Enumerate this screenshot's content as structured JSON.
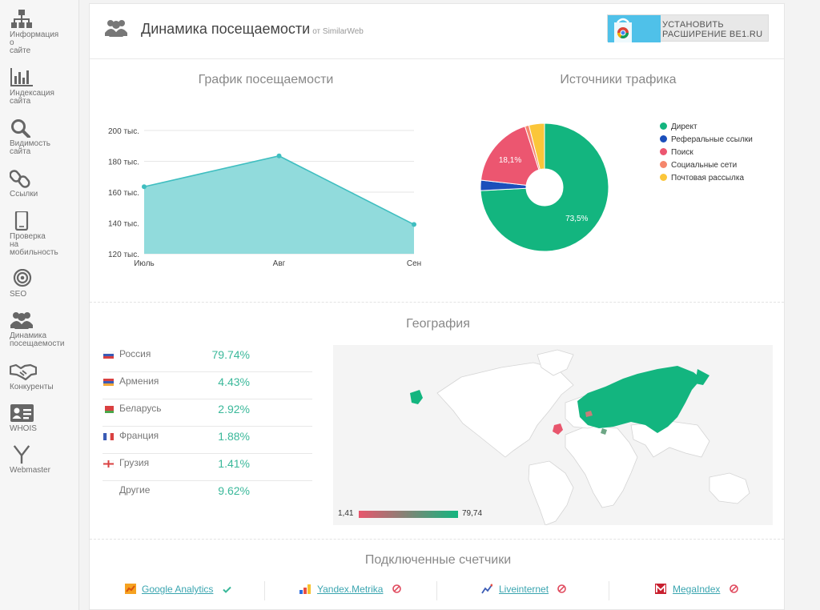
{
  "sidebar": {
    "items": [
      {
        "icon": "sitemap-icon",
        "label": "Информация\nо\nсайте"
      },
      {
        "icon": "bar-chart-icon",
        "label": "Индексация\nсайта"
      },
      {
        "icon": "search-icon",
        "label": "Видимость\nсайта"
      },
      {
        "icon": "link-icon",
        "label": "Ссылки"
      },
      {
        "icon": "mobile-icon",
        "label": "Проверка\nна\nмобильность"
      },
      {
        "icon": "target-icon",
        "label": "SEO"
      },
      {
        "icon": "users-icon",
        "label": "Динамика\nпосещаемости"
      },
      {
        "icon": "handshake-icon",
        "label": "Конкуренты"
      },
      {
        "icon": "id-card-icon",
        "label": "WHOIS"
      },
      {
        "icon": "yandex-icon",
        "label": "Webmaster"
      }
    ]
  },
  "header": {
    "icon": "users-icon",
    "title": "Динамика посещаемости",
    "subtitle": "от SimilarWeb",
    "extension_button": "УСТАНОВИТЬ\nРАСШИРЕНИЕ BE1.RU"
  },
  "traffic": {
    "title": "График посещаемости"
  },
  "sources": {
    "title": "Источники трафика"
  },
  "geography": {
    "title": "География",
    "rows": [
      {
        "flag": "ru",
        "name": "Россия",
        "pct": "79.74%"
      },
      {
        "flag": "am",
        "name": "Армения",
        "pct": "4.43%"
      },
      {
        "flag": "by",
        "name": "Беларусь",
        "pct": "2.92%"
      },
      {
        "flag": "fr",
        "name": "Франция",
        "pct": "1.88%"
      },
      {
        "flag": "ge",
        "name": "Грузия",
        "pct": "1.41%"
      },
      {
        "flag": "",
        "name": "Другие",
        "pct": "9.62%"
      }
    ],
    "legend_min": "1,41",
    "legend_max": "79,74"
  },
  "counters": {
    "title": "Подключенные счетчики",
    "items": [
      {
        "icon": "google-analytics-icon",
        "name": "Google Analytics",
        "status": "connected",
        "status_icon": "check-icon"
      },
      {
        "icon": "yandex-metrika-icon",
        "name": "Yandex.Metrika",
        "status": "not-connected",
        "status_icon": "ban-icon"
      },
      {
        "icon": "liveinternet-icon",
        "name": "Liveinternet",
        "status": "not-connected",
        "status_icon": "ban-icon"
      },
      {
        "icon": "megaindex-icon",
        "name": "MegaIndex",
        "status": "not-connected",
        "status_icon": "ban-icon"
      }
    ]
  },
  "colors": {
    "accent": "#3ab89a",
    "area_fill": "#91dbdc",
    "area_line": "#3fbec0",
    "map_green": "#13b57f",
    "map_red": "#e8566d"
  },
  "chart_data": [
    {
      "type": "area",
      "title": "График посещаемости",
      "categories": [
        "Июль",
        "Авг",
        "Сен"
      ],
      "values": [
        163500,
        183500,
        139000
      ],
      "ylim": [
        120000,
        200000
      ],
      "yticks": [
        {
          "value": 120000,
          "label": "120 тыс."
        },
        {
          "value": 140000,
          "label": "140 тыс."
        },
        {
          "value": 160000,
          "label": "160 тыс."
        },
        {
          "value": 180000,
          "label": "180 тыс."
        },
        {
          "value": 200000,
          "label": "200 тыс."
        }
      ],
      "grid": true
    },
    {
      "type": "pie",
      "title": "Источники трафика",
      "legend_position": "right",
      "slices": [
        {
          "name": "Директ",
          "value": 73.5,
          "label": "73,5%",
          "color": "#13b57f"
        },
        {
          "name": "Реферальные ссылки",
          "value": 2.6,
          "label": "",
          "color": "#1b4fbb"
        },
        {
          "name": "Поиск",
          "value": 18.1,
          "label": "18,1%",
          "color": "#ec5670"
        },
        {
          "name": "Социальные сети",
          "value": 1.0,
          "label": "",
          "color": "#f5866c"
        },
        {
          "name": "Почтовая рассылка",
          "value": 3.9,
          "label": "",
          "color": "#fbc63a"
        }
      ]
    }
  ]
}
